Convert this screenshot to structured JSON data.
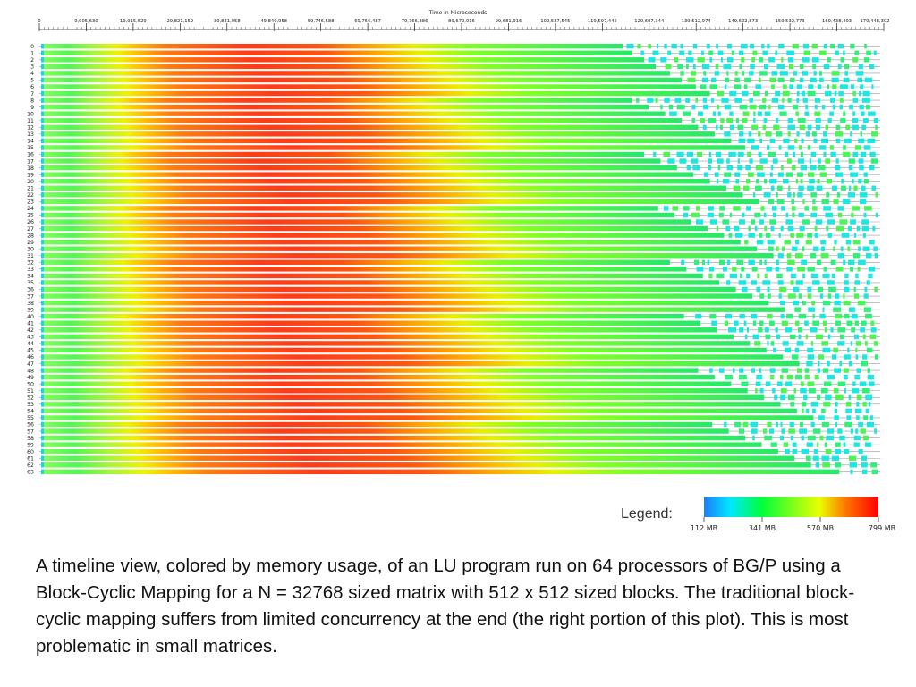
{
  "chart_data": {
    "type": "heatmap",
    "axis_title": "Time in Microseconds",
    "x_ticks": [
      "0",
      "9,905,630",
      "19,915,529",
      "29,821,159",
      "39,831,058",
      "49,840,958",
      "59,746,588",
      "69,756,487",
      "79,766,386",
      "89,672,016",
      "99,681,916",
      "109,587,545",
      "119,597,445",
      "129,607,344",
      "139,512,974",
      "149,522,873",
      "159,532,773",
      "169,438,403",
      "179,448,302"
    ],
    "x_range": [
      0,
      179448302
    ],
    "rows": [
      "0",
      "1",
      "2",
      "3",
      "4",
      "5",
      "6",
      "7",
      "8",
      "9",
      "10",
      "11",
      "12",
      "13",
      "14",
      "15",
      "16",
      "17",
      "18",
      "19",
      "20",
      "21",
      "22",
      "23",
      "24",
      "25",
      "26",
      "27",
      "28",
      "29",
      "30",
      "31",
      "32",
      "33",
      "34",
      "35",
      "36",
      "37",
      "38",
      "39",
      "40",
      "41",
      "42",
      "43",
      "44",
      "45",
      "46",
      "47",
      "48",
      "49",
      "50",
      "51",
      "52",
      "53",
      "54",
      "55",
      "56",
      "57",
      "58",
      "59",
      "60",
      "61",
      "62",
      "63"
    ],
    "continuous_end_time": [
      124000000,
      126000000,
      128500000,
      131000000,
      134000000,
      136500000,
      139500000,
      142500000,
      126000000,
      129500000,
      133000000,
      136500000,
      140000000,
      143500000,
      147000000,
      150000000,
      128500000,
      132000000,
      135500000,
      139000000,
      142500000,
      146000000,
      149500000,
      153000000,
      131500000,
      135000000,
      138500000,
      142000000,
      145500000,
      149000000,
      152500000,
      156000000,
      134000000,
      137500000,
      141000000,
      144500000,
      148000000,
      151500000,
      155000000,
      158500000,
      137000000,
      140500000,
      144000000,
      147500000,
      151000000,
      154500000,
      158000000,
      161500000,
      140000000,
      143500000,
      147000000,
      150500000,
      154000000,
      157500000,
      161000000,
      164500000,
      143000000,
      146500000,
      150000000,
      153500000,
      157000000,
      160500000,
      164000000,
      170000000
    ],
    "run_end_time": 179448302,
    "color_scale": {
      "min_label": "112 MB",
      "tick_labels": [
        "112 MB",
        "341 MB",
        "570 MB",
        "799 MB"
      ],
      "colors": [
        "#1e7bff",
        "#00e8ff",
        "#00ff3c",
        "#e9ff00",
        "#ff7000",
        "#ff0000"
      ]
    },
    "legend_title": "Legend:"
  },
  "caption": "A timeline view, colored by memory usage, of an LU program run on 64 processors of BG/P using a Block-Cyclic Mapping for a  N = 32768 sized matrix with 512 x 512 sized blocks. The traditional block-cyclic mapping suffers from limited concurrency at the end (the right portion of this plot). This is most problematic in small matrices."
}
